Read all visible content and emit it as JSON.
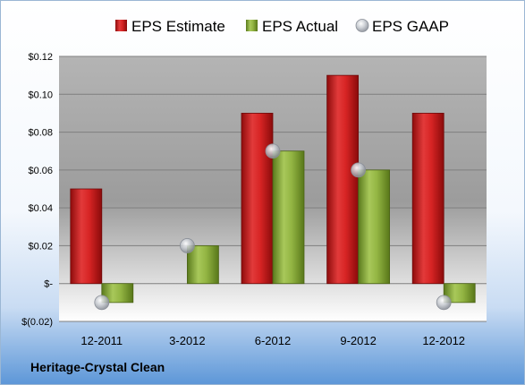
{
  "company": "Heritage-Crystal Clean",
  "colors": {
    "estimate": "#cc1f1f",
    "actual": "#8fb33c",
    "gaap": "#b8bcc4"
  },
  "chart_data": {
    "type": "bar",
    "categories": [
      "12-2011",
      "3-2012",
      "6-2012",
      "9-2012",
      "12-2012"
    ],
    "series": [
      {
        "name": "EPS Estimate",
        "values": [
          0.05,
          null,
          0.09,
          0.11,
          0.09
        ]
      },
      {
        "name": "EPS Actual",
        "values": [
          -0.01,
          0.02,
          0.07,
          0.06,
          -0.01
        ]
      },
      {
        "name": "EPS GAAP",
        "values": [
          -0.01,
          0.02,
          0.07,
          0.06,
          -0.01
        ]
      }
    ],
    "ylim": [
      -0.02,
      0.12
    ],
    "yticks": [
      {
        "value": 0.12,
        "label": "$0.12"
      },
      {
        "value": 0.1,
        "label": "$0.10"
      },
      {
        "value": 0.08,
        "label": "$0.08"
      },
      {
        "value": 0.06,
        "label": "$0.06"
      },
      {
        "value": 0.04,
        "label": "$0.04"
      },
      {
        "value": 0.02,
        "label": "$0.02"
      },
      {
        "value": 0.0,
        "label": "$-"
      },
      {
        "value": -0.02,
        "label": "$(0.02)"
      }
    ],
    "grid": true,
    "legend_position": "top"
  }
}
